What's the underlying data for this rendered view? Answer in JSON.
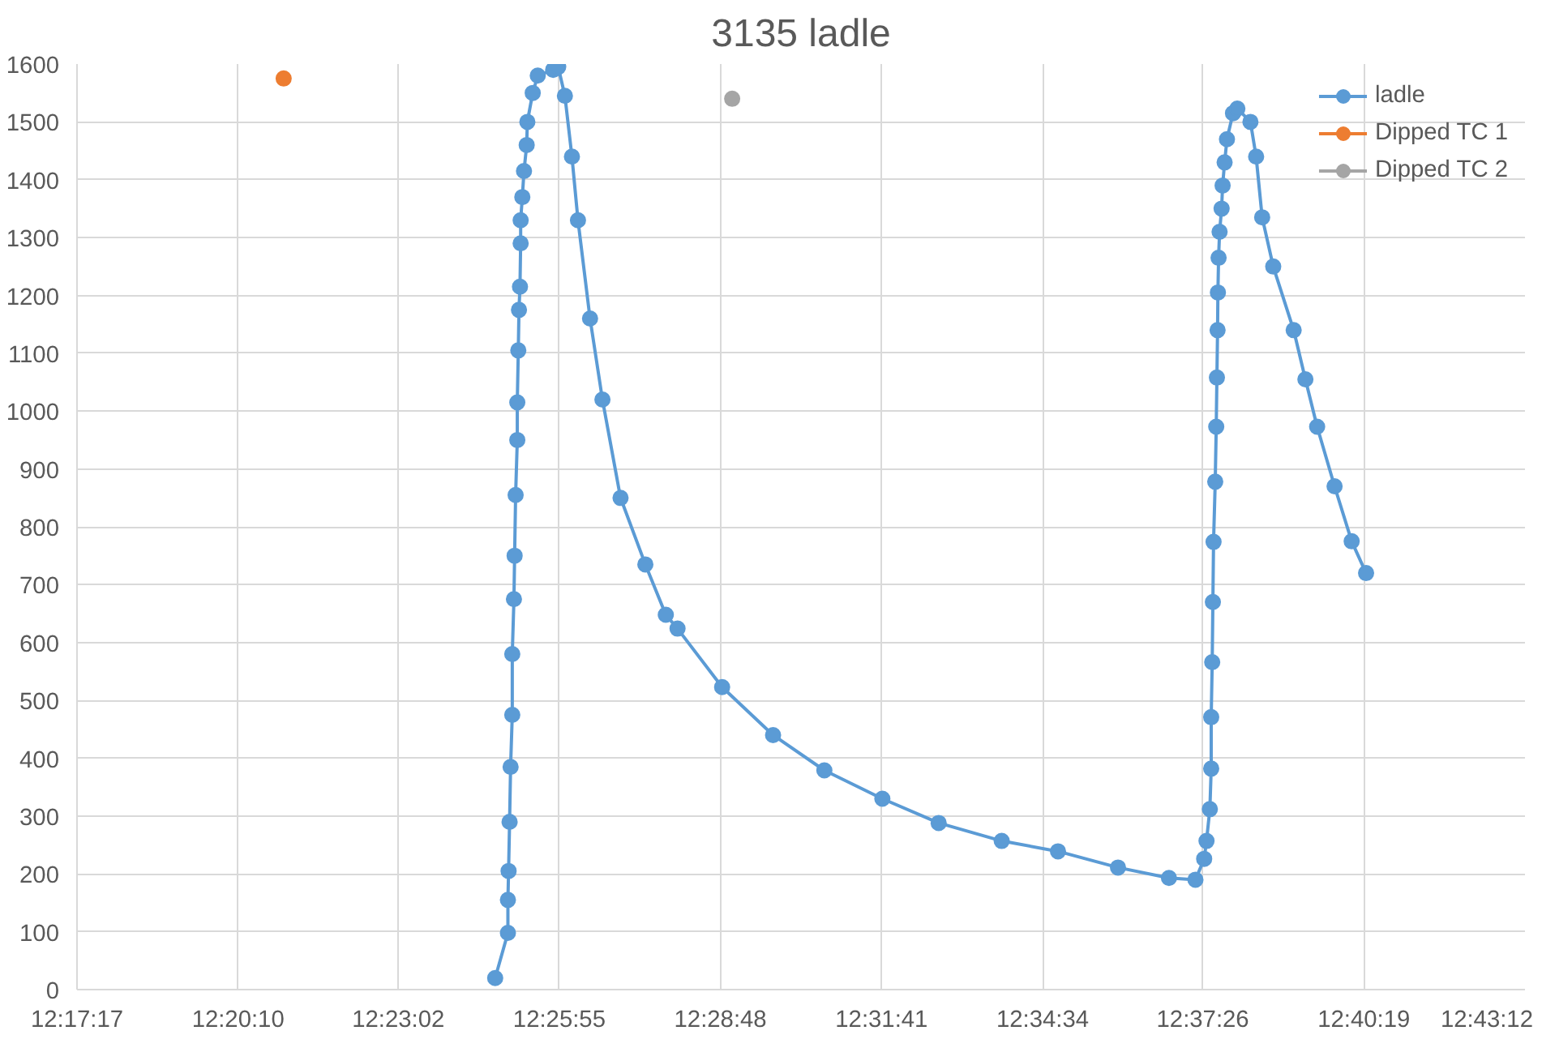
{
  "chart_data": {
    "type": "line",
    "title": "3135 ladle",
    "marker": "circle",
    "grid": true,
    "legend": "top right",
    "xlim": [
      12.28806,
      12.72
    ],
    "xticks": [
      {
        "value": 12.28806,
        "label": "12:17:17"
      },
      {
        "value": 12.33611,
        "label": "12:20:10"
      },
      {
        "value": 12.38389,
        "label": "12:23:02"
      },
      {
        "value": 12.43194,
        "label": "12:25:55"
      },
      {
        "value": 12.48,
        "label": "12:28:48"
      },
      {
        "value": 12.52806,
        "label": "12:31:41"
      },
      {
        "value": 12.57611,
        "label": "12:34:34"
      },
      {
        "value": 12.62389,
        "label": "12:37:26"
      },
      {
        "value": 12.67194,
        "label": "12:40:19"
      },
      {
        "value": 12.72,
        "label": "12:43:12"
      }
    ],
    "ylim": [
      0,
      1600
    ],
    "yticks": [
      0,
      100,
      200,
      300,
      400,
      500,
      600,
      700,
      800,
      900,
      1000,
      1100,
      1200,
      1300,
      1400,
      1500,
      1600
    ],
    "series": [
      {
        "name": "ladle",
        "color": "#5b9bd5",
        "x": [
          12.4128,
          12.4166,
          12.4166,
          12.4168,
          12.4171,
          12.4174,
          12.4179,
          12.4179,
          12.4184,
          12.4186,
          12.4189,
          12.4194,
          12.4194,
          12.4197,
          12.4199,
          12.4202,
          12.4204,
          12.4204,
          12.4209,
          12.4214,
          12.4222,
          12.4224,
          12.424,
          12.4255,
          12.4301,
          12.4316,
          12.4336,
          12.4357,
          12.4375,
          12.4411,
          12.4448,
          12.4502,
          12.4576,
          12.4637,
          12.4672,
          12.4805,
          12.4957,
          12.511,
          12.5283,
          12.5451,
          12.5639,
          12.5807,
          12.5986,
          12.6138,
          12.6217,
          12.6243,
          12.625,
          12.626,
          12.6264,
          12.6264,
          12.6267,
          12.6269,
          12.6271,
          12.6276,
          12.6279,
          12.6281,
          12.6283,
          12.6284,
          12.6286,
          12.6289,
          12.6295,
          12.6298,
          12.6304,
          12.6311,
          12.6329,
          12.6342,
          12.6381,
          12.6398,
          12.6416,
          12.6449,
          12.651,
          12.6545,
          12.658,
          12.6632,
          12.6683,
          12.6726
        ],
        "values": [
          20,
          98,
          155,
          205,
          290,
          385,
          475,
          580,
          675,
          750,
          855,
          950,
          1015,
          1105,
          1175,
          1215,
          1290,
          1330,
          1370,
          1415,
          1460,
          1500,
          1550,
          1580,
          1590,
          1595,
          1545,
          1440,
          1330,
          1160,
          1020,
          850,
          735,
          648,
          624,
          523,
          440,
          379,
          330,
          288,
          257,
          239,
          211,
          193,
          190,
          226,
          257,
          312,
          382,
          471,
          566,
          670,
          774,
          878,
          973,
          1058,
          1140,
          1205,
          1265,
          1310,
          1350,
          1390,
          1430,
          1470,
          1515,
          1523,
          1500,
          1440,
          1335,
          1250,
          1140,
          1055,
          973,
          870,
          775,
          720
        ]
      },
      {
        "name": "Dipped TC 1",
        "color": "#ed7d31",
        "x": [
          12.3497
        ],
        "values": [
          1575
        ]
      },
      {
        "name": "Dipped TC 2",
        "color": "#a5a5a5",
        "x": [
          12.4835
        ],
        "values": [
          1540
        ]
      }
    ]
  }
}
